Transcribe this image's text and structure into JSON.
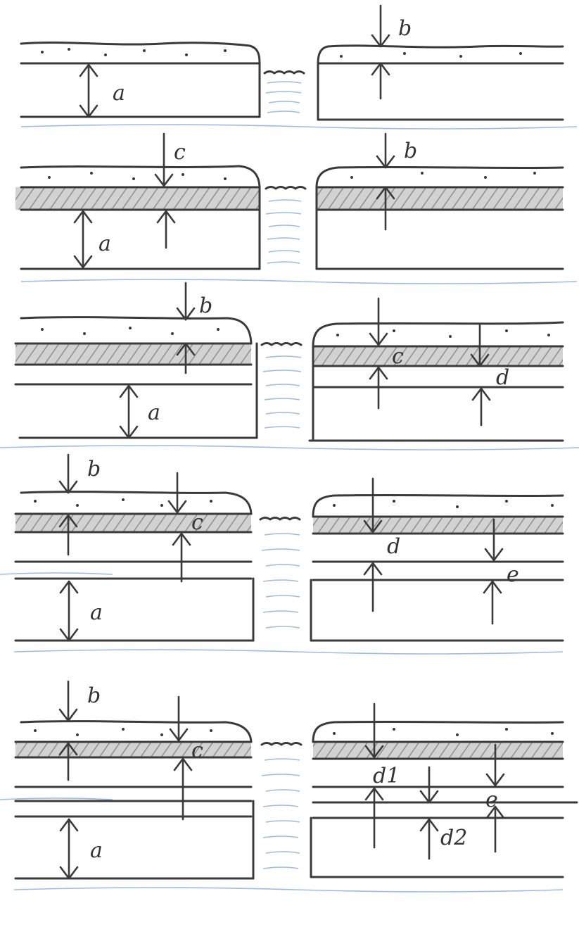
{
  "panels": [
    {
      "labels": {
        "a": "a",
        "b": "b"
      }
    },
    {
      "labels": {
        "a": "a",
        "b": "b",
        "c": "c"
      }
    },
    {
      "labels": {
        "a": "a",
        "b": "b",
        "c": "c",
        "d": "d"
      }
    },
    {
      "labels": {
        "a": "a",
        "b": "b",
        "c": "c",
        "d": "d",
        "e": "e"
      }
    },
    {
      "labels": {
        "a": "a",
        "b": "b",
        "c": "c",
        "d1": "d1",
        "e": "e",
        "d2": "d2"
      }
    }
  ],
  "colors": {
    "ink": "#3a3a3a",
    "water": "#7aa7db",
    "hatch": "#9a9a9a",
    "paper": "#ffffff"
  }
}
